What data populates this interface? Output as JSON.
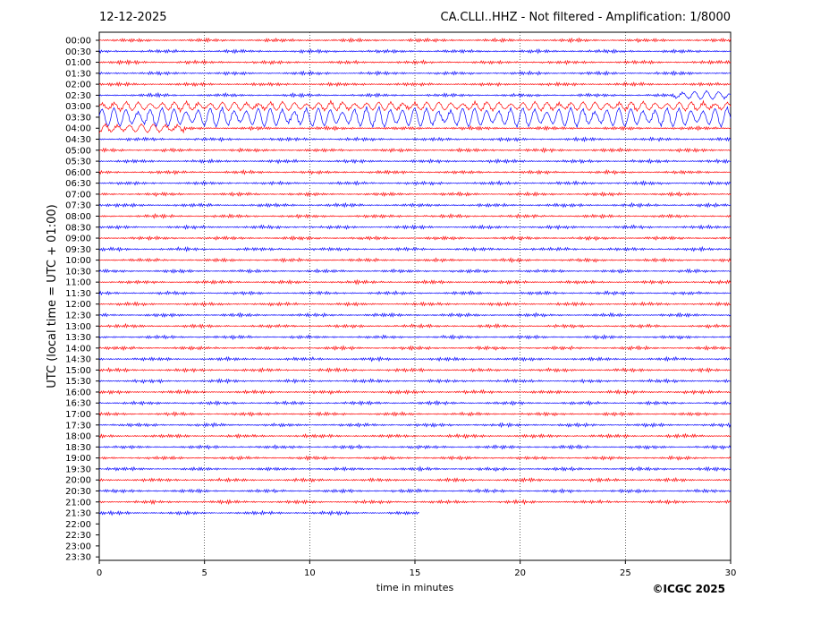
{
  "header": {
    "date": "12-12-2025",
    "station": "CA.CLLI..HHZ - Not filtered - Amplification: 1/8000"
  },
  "footer": {
    "copyright": "©ICGC 2025"
  },
  "chart_data": {
    "type": "line",
    "title": "CA.CLLI..HHZ - Not filtered - Amplification: 1/8000",
    "xlabel": "time in minutes",
    "ylabel": "UTC (local time = UTC + 01:00)",
    "xlim": [
      0,
      30
    ],
    "x_ticks": [
      0,
      5,
      10,
      15,
      20,
      25,
      30
    ],
    "grid": "vertical dotted at every 5 minutes",
    "row_labels": [
      "00:00",
      "00:30",
      "01:00",
      "01:30",
      "02:00",
      "02:30",
      "03:00",
      "03:30",
      "04:00",
      "04:30",
      "05:00",
      "05:30",
      "06:00",
      "06:30",
      "07:00",
      "07:30",
      "08:00",
      "08:30",
      "09:00",
      "09:30",
      "10:00",
      "10:30",
      "11:00",
      "11:30",
      "12:00",
      "12:30",
      "13:00",
      "13:30",
      "14:00",
      "14:30",
      "15:00",
      "15:30",
      "16:00",
      "16:30",
      "17:00",
      "17:30",
      "18:00",
      "18:30",
      "19:00",
      "19:30",
      "20:00",
      "20:30",
      "21:00",
      "21:30",
      "22:00",
      "22:30",
      "23:00",
      "23:30"
    ],
    "trace_colors": [
      "#ff0000",
      "#0000ff"
    ],
    "trace_end_minutes": [
      30,
      30,
      30,
      30,
      30,
      30,
      30,
      30,
      30,
      30,
      30,
      30,
      30,
      30,
      30,
      30,
      30,
      30,
      30,
      30,
      30,
      30,
      30,
      30,
      30,
      30,
      30,
      30,
      30,
      30,
      30,
      30,
      30,
      30,
      30,
      30,
      30,
      30,
      30,
      30,
      30,
      30,
      30,
      15.2,
      0,
      0,
      0,
      0
    ],
    "events": [
      {
        "row": "02:30",
        "start_min": 27.3,
        "end_min": 30,
        "amplitude": "moderate"
      },
      {
        "row": "03:00",
        "start_min": 0,
        "end_min": 30,
        "amplitude": "moderate"
      },
      {
        "row": "03:30",
        "start_min": 0,
        "end_min": 30,
        "amplitude": "large",
        "peak_min": 13.7
      },
      {
        "row": "04:00",
        "start_min": 0,
        "end_min": 4,
        "amplitude": "moderate"
      }
    ]
  }
}
